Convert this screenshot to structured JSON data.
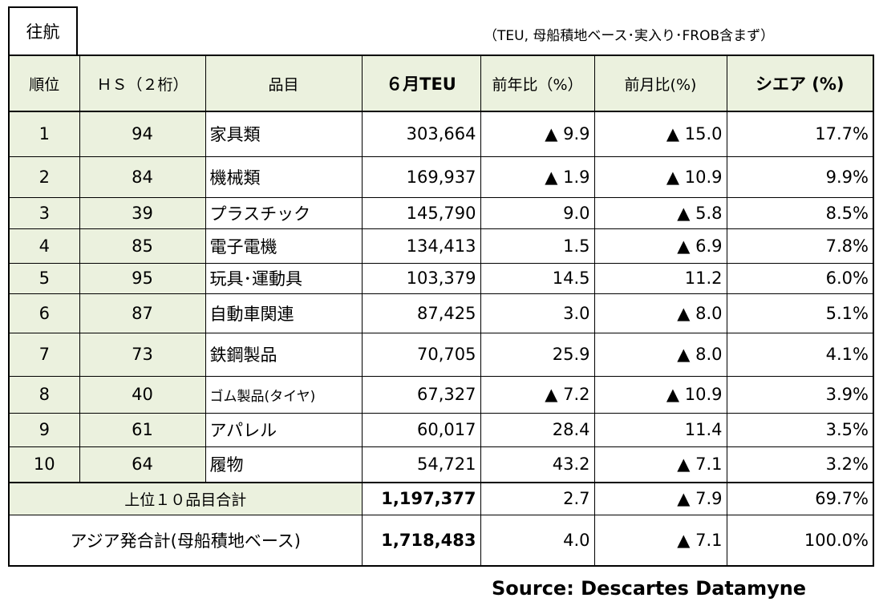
{
  "tag": "往航",
  "note": "（TEU, 母船積地ベース･実入り･FROB含まず）",
  "headers": {
    "rank": "順位",
    "hs": "ＨＳ（２桁）",
    "item": "品目",
    "teu": "６月TEU",
    "yoy": "前年比（%）",
    "mom": "前月比(%)",
    "share": "シエア (%)"
  },
  "rows": [
    {
      "rank": "1",
      "hs": "94",
      "item": "家具類",
      "teu": "303,664",
      "yoy": "▲ 9.9",
      "mom": "▲ 15.0",
      "share": "17.7%"
    },
    {
      "rank": "2",
      "hs": "84",
      "item": "機械類",
      "teu": "169,937",
      "yoy": "▲ 1.9",
      "mom": "▲ 10.9",
      "share": "9.9%"
    },
    {
      "rank": "3",
      "hs": "39",
      "item": "プラスチック",
      "teu": "145,790",
      "yoy": "9.0",
      "mom": "▲ 5.8",
      "share": "8.5%"
    },
    {
      "rank": "4",
      "hs": "85",
      "item": "電子電機",
      "teu": "134,413",
      "yoy": "1.5",
      "mom": "▲ 6.9",
      "share": "7.8%"
    },
    {
      "rank": "5",
      "hs": "95",
      "item": "玩具･運動具",
      "teu": "103,379",
      "yoy": "14.5",
      "mom": "11.2",
      "share": "6.0%"
    },
    {
      "rank": "6",
      "hs": "87",
      "item": "自動車関連",
      "teu": "87,425",
      "yoy": "3.0",
      "mom": "▲ 8.0",
      "share": "5.1%"
    },
    {
      "rank": "7",
      "hs": "73",
      "item": "鉄鋼製品",
      "teu": "70,705",
      "yoy": "25.9",
      "mom": "▲ 8.0",
      "share": "4.1%"
    },
    {
      "rank": "8",
      "hs": "40",
      "item": "ゴム製品(タイヤ)",
      "teu": "67,327",
      "yoy": "▲ 7.2",
      "mom": "▲ 10.9",
      "share": "3.9%"
    },
    {
      "rank": "9",
      "hs": "61",
      "item": "アパレル",
      "teu": "60,017",
      "yoy": "28.4",
      "mom": "11.4",
      "share": "3.5%"
    },
    {
      "rank": "10",
      "hs": "64",
      "item": "履物",
      "teu": "54,721",
      "yoy": "43.2",
      "mom": "▲ 7.1",
      "share": "3.2%"
    }
  ],
  "top10": {
    "label": "上位１０品目合計",
    "teu": "1,197,377",
    "yoy": "2.7",
    "mom": "▲ 7.9",
    "share": "69.7%"
  },
  "asia": {
    "label": "アジア発合計(母船積地ベース)",
    "teu": "1,718,483",
    "yoy": "4.0",
    "mom": "▲ 7.1",
    "share": "100.0%"
  },
  "source": "Source: Descartes Datamyne"
}
